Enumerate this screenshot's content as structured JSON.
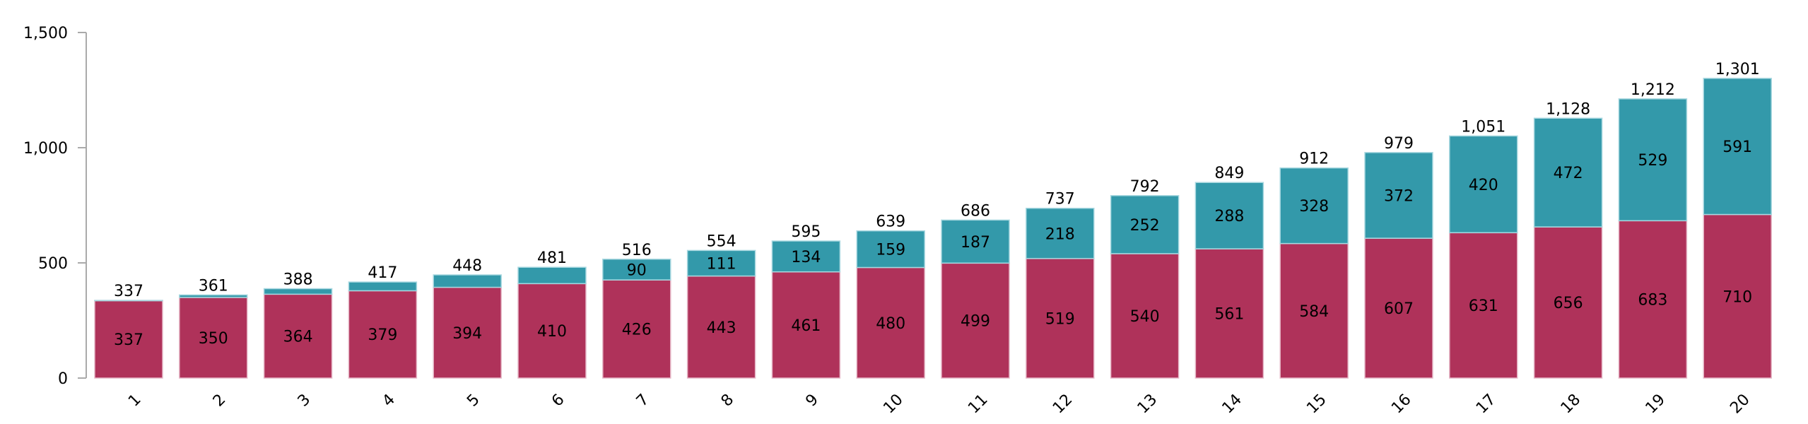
{
  "chart_data": {
    "type": "bar",
    "stacked": true,
    "title": "",
    "xlabel": "",
    "ylabel": "",
    "categories": [
      "1",
      "2",
      "3",
      "4",
      "5",
      "6",
      "7",
      "8",
      "9",
      "10",
      "11",
      "12",
      "13",
      "14",
      "15",
      "16",
      "17",
      "18",
      "19",
      "20"
    ],
    "series": [
      {
        "values": [
          337,
          350,
          364,
          379,
          394,
          410,
          426,
          443,
          461,
          480,
          499,
          519,
          540,
          561,
          584,
          607,
          631,
          656,
          683,
          710
        ],
        "color": "#AF325A"
      },
      {
        "values": [
          0,
          11,
          24,
          38,
          54,
          71,
          90,
          111,
          134,
          159,
          187,
          218,
          252,
          288,
          328,
          372,
          420,
          472,
          529,
          591
        ],
        "color": "#3399AA"
      }
    ],
    "totals": [
      337,
      361,
      388,
      417,
      448,
      481,
      516,
      554,
      595,
      639,
      686,
      737,
      792,
      849,
      912,
      979,
      1051,
      1128,
      1212,
      1301
    ],
    "segment_labels_shown_from": {
      "bottom": 1,
      "top": 7
    },
    "ylim": [
      0,
      1500
    ],
    "yticks": [
      0,
      500,
      1000,
      1500
    ],
    "ytick_labels": [
      "0",
      "500",
      "1,000",
      "1,500"
    ],
    "grid": false,
    "legend": "none"
  }
}
